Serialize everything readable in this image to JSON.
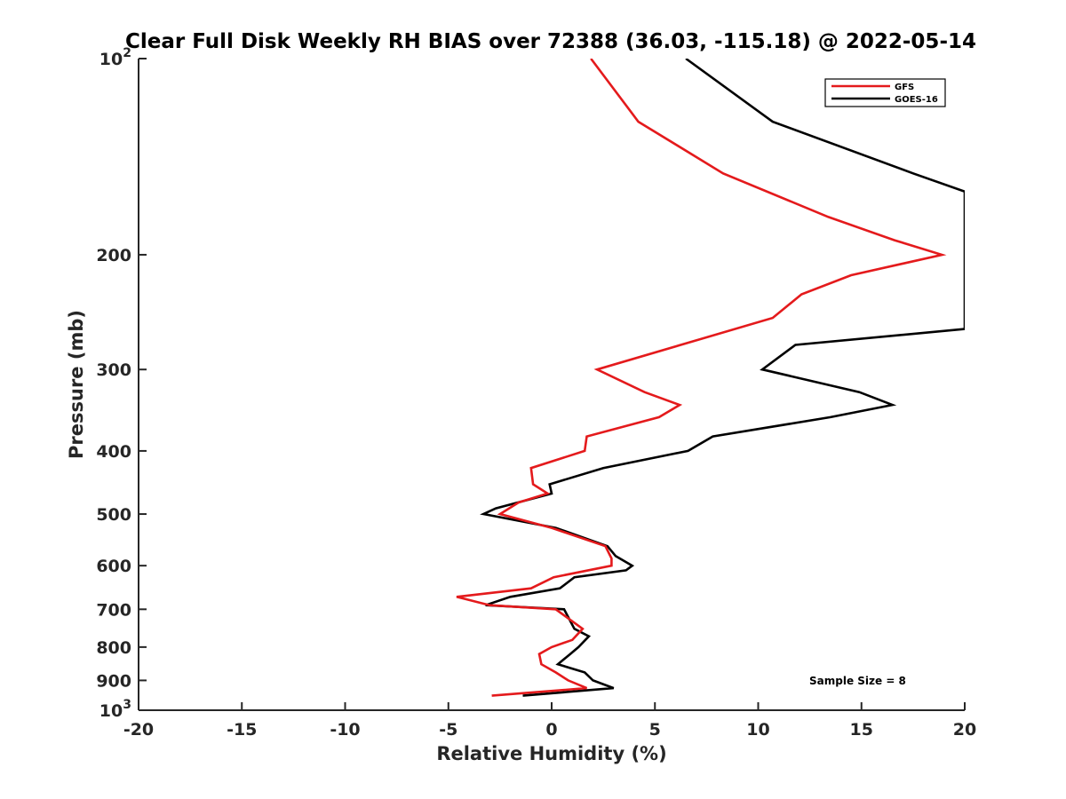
{
  "chart_data": {
    "type": "line",
    "title": "Clear Full Disk Weekly RH BIAS over 72388 (36.03, -115.18) @ 2022-05-14",
    "xlabel": "Relative Humidity (%)",
    "ylabel": "Pressure (mb)",
    "xlim": [
      -20,
      20
    ],
    "ylim": [
      100,
      1000
    ],
    "y_scale": "log",
    "y_reversed": true,
    "grid": false,
    "x_ticks": [
      -20,
      -15,
      -10,
      -5,
      0,
      5,
      10,
      15,
      20
    ],
    "x_tick_labels": [
      "-20",
      "-15",
      "-10",
      "-5",
      "0",
      "5",
      "10",
      "15",
      "20"
    ],
    "y_ticks": [
      100,
      200,
      300,
      400,
      500,
      600,
      700,
      800,
      900,
      1000
    ],
    "y_tick_labels": [
      {
        "base": "10",
        "exp": "2"
      },
      {
        "base": "200"
      },
      {
        "base": "300"
      },
      {
        "base": "400"
      },
      {
        "base": "500"
      },
      {
        "base": "600"
      },
      {
        "base": "700"
      },
      {
        "base": "800"
      },
      {
        "base": "900"
      },
      {
        "base": "10",
        "exp": "3"
      }
    ],
    "legend": {
      "position": "top-right",
      "entries": [
        {
          "name": "GFS",
          "color": "#e41a1c"
        },
        {
          "name": "GOES-16",
          "color": "#000000"
        }
      ]
    },
    "annotation": "Sample Size = 8",
    "series": [
      {
        "name": "GFS",
        "color": "#e41a1c",
        "points": [
          [
            1.9,
            100
          ],
          [
            4.2,
            125
          ],
          [
            8.3,
            150
          ],
          [
            13.4,
            175
          ],
          [
            16.6,
            190
          ],
          [
            18.9,
            200
          ],
          [
            14.5,
            215
          ],
          [
            12.1,
            230
          ],
          [
            10.7,
            250
          ],
          [
            2.2,
            300
          ],
          [
            4.5,
            325
          ],
          [
            6.2,
            340
          ],
          [
            5.2,
            355
          ],
          [
            1.7,
            380
          ],
          [
            1.6,
            400
          ],
          [
            -1.0,
            425
          ],
          [
            -0.9,
            450
          ],
          [
            -0.2,
            465
          ],
          [
            -1.6,
            480
          ],
          [
            -2.5,
            500
          ],
          [
            0.0,
            525
          ],
          [
            2.6,
            560
          ],
          [
            2.9,
            585
          ],
          [
            2.9,
            600
          ],
          [
            0.1,
            625
          ],
          [
            -1.0,
            650
          ],
          [
            -4.6,
            670
          ],
          [
            -3.0,
            690
          ],
          [
            0.2,
            700
          ],
          [
            1.5,
            750
          ],
          [
            1.0,
            780
          ],
          [
            0.0,
            800
          ],
          [
            -0.6,
            820
          ],
          [
            -0.5,
            850
          ],
          [
            0.2,
            875
          ],
          [
            0.8,
            900
          ],
          [
            1.7,
            925
          ],
          [
            -2.9,
            950
          ]
        ]
      },
      {
        "name": "GOES-16",
        "color": "#000000",
        "points": [
          [
            6.5,
            100
          ],
          [
            10.7,
            125
          ],
          [
            17.5,
            150
          ],
          [
            20.0,
            160
          ],
          [
            20.0,
            260
          ],
          [
            11.8,
            275
          ],
          [
            10.2,
            300
          ],
          [
            14.9,
            325
          ],
          [
            16.5,
            340
          ],
          [
            13.5,
            355
          ],
          [
            7.8,
            380
          ],
          [
            6.6,
            400
          ],
          [
            2.5,
            425
          ],
          [
            -0.1,
            450
          ],
          [
            0.0,
            465
          ],
          [
            -2.7,
            490
          ],
          [
            -3.3,
            500
          ],
          [
            0.2,
            525
          ],
          [
            2.7,
            560
          ],
          [
            3.1,
            580
          ],
          [
            3.9,
            600
          ],
          [
            3.6,
            610
          ],
          [
            1.1,
            625
          ],
          [
            0.4,
            650
          ],
          [
            -2.0,
            670
          ],
          [
            -3.2,
            690
          ],
          [
            0.6,
            700
          ],
          [
            1.1,
            750
          ],
          [
            1.8,
            770
          ],
          [
            1.3,
            800
          ],
          [
            0.9,
            820
          ],
          [
            0.3,
            850
          ],
          [
            1.6,
            875
          ],
          [
            2.0,
            900
          ],
          [
            3.0,
            925
          ],
          [
            -1.4,
            950
          ]
        ]
      }
    ]
  }
}
